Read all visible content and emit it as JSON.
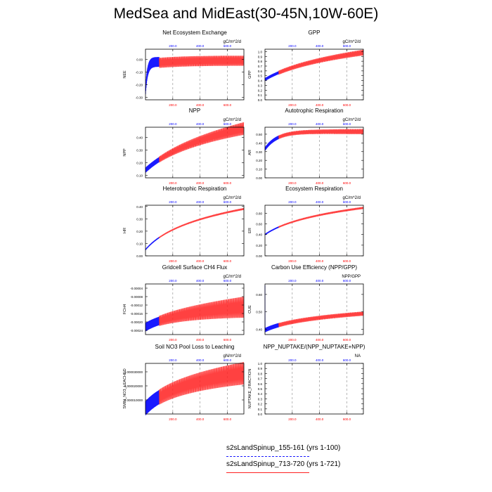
{
  "page": {
    "title": "MedSea and MidEast(30-45N,10W-60E)"
  },
  "legend": {
    "entries": [
      {
        "label": "s2sLandSpinup_155-161 (yrs 1-100)",
        "color": "#1a1aff",
        "style": "dashed"
      },
      {
        "label": "s2sLandSpinup_713-720 (yrs 1-721)",
        "color": "#ff2020",
        "style": "solid"
      }
    ]
  },
  "colors": {
    "case1": "#1a1aff",
    "case2": "#ff2020",
    "grid": "#888888",
    "top_axis_labels": "#0000ff",
    "bottom_axis_labels": "#ff0000"
  },
  "chart_data": [
    {
      "type": "line",
      "title": "Net Ecosystem Exchange",
      "units": "gC/m^2/d",
      "ylabel": "NEE",
      "ylim": [
        -0.32,
        0.08
      ],
      "yticks": [
        -0.3,
        -0.2,
        -0.1,
        0.0
      ],
      "ytick_labels": [
        "-0.30",
        "-0.20",
        "-0.10",
        "0.00"
      ],
      "xlim": [
        0,
        721
      ],
      "xticks": [
        200,
        400,
        600
      ],
      "xtick_labels": [
        "200.0",
        "400.0",
        "600.0"
      ],
      "series": [
        {
          "name": "s2sLandSpinup_155-161",
          "years": [
            1,
            100
          ],
          "start": -0.25,
          "end": -0.02,
          "shape": "decay",
          "k": 15,
          "amp": 0.04,
          "amp_final": 0.03
        },
        {
          "name": "s2sLandSpinup_713-720",
          "years": [
            1,
            721
          ],
          "start": -0.04,
          "end": -0.01,
          "shape": "decay",
          "k": 200,
          "amp": 0.04,
          "amp_final": 0.04
        }
      ]
    },
    {
      "type": "line",
      "title": "GPP",
      "units": "gC/m^2/d",
      "ylabel": "GPP",
      "ylim": [
        0.0,
        1.05
      ],
      "yticks": [
        0.0,
        0.1,
        0.2,
        0.3,
        0.4,
        0.5,
        0.6,
        0.7,
        0.8,
        0.9,
        1.0
      ],
      "ytick_labels": [
        "0.0",
        "0.1",
        "0.2",
        "0.3",
        "0.4",
        "0.5",
        "0.6",
        "0.7",
        "0.8",
        "0.9",
        "1.0"
      ],
      "xlim": [
        0,
        721
      ],
      "xticks": [
        200,
        400,
        600
      ],
      "xtick_labels": [
        "200.0",
        "400.0",
        "600.0"
      ],
      "series": [
        {
          "name": "s2sLandSpinup_155-161",
          "years": [
            1,
            100
          ],
          "start": 0.42,
          "end": 0.98,
          "shape": "log",
          "k": 230,
          "amp": 0.03,
          "amp_final": 0.03
        },
        {
          "name": "s2sLandSpinup_713-720",
          "years": [
            1,
            721
          ],
          "start": 0.42,
          "end": 0.98,
          "shape": "log",
          "k": 230,
          "amp": 0.04,
          "amp_final": 0.06
        }
      ]
    },
    {
      "type": "line",
      "title": "NPP",
      "units": "gC/m^2/d",
      "ylabel": "NPP",
      "ylim": [
        0.08,
        0.48
      ],
      "yticks": [
        0.1,
        0.2,
        0.3,
        0.4
      ],
      "ytick_labels": [
        "0.10",
        "0.20",
        "0.30",
        "0.40"
      ],
      "xlim": [
        0,
        721
      ],
      "xticks": [
        200,
        400,
        600
      ],
      "xtick_labels": [
        "200.0",
        "400.0",
        "600.0"
      ],
      "series": [
        {
          "name": "s2sLandSpinup_155-161",
          "years": [
            1,
            100
          ],
          "start": 0.14,
          "end": 0.47,
          "shape": "log",
          "k": 230,
          "amp": 0.02,
          "amp_final": 0.02
        },
        {
          "name": "s2sLandSpinup_713-720",
          "years": [
            1,
            721
          ],
          "start": 0.14,
          "end": 0.47,
          "shape": "log",
          "k": 230,
          "amp": 0.02,
          "amp_final": 0.05
        }
      ]
    },
    {
      "type": "line",
      "title": "Autotrophic Respiration",
      "units": "gC/m^2/d",
      "ylabel": "AR",
      "ylim": [
        0.0,
        0.58
      ],
      "yticks": [
        0.0,
        0.1,
        0.2,
        0.3,
        0.4,
        0.5
      ],
      "ytick_labels": [
        "0.00",
        "0.10",
        "0.20",
        "0.30",
        "0.40",
        "0.50"
      ],
      "xlim": [
        0,
        721
      ],
      "xticks": [
        200,
        400,
        600
      ],
      "xtick_labels": [
        "200.0",
        "400.0",
        "600.0"
      ],
      "series": [
        {
          "name": "s2sLandSpinup_155-161",
          "years": [
            1,
            100
          ],
          "start": 0.33,
          "end": 0.53,
          "shape": "decay",
          "k": 90,
          "amp": 0.02,
          "amp_final": 0.02
        },
        {
          "name": "s2sLandSpinup_713-720",
          "years": [
            1,
            721
          ],
          "start": 0.33,
          "end": 0.53,
          "shape": "decay",
          "k": 90,
          "amp": 0.02,
          "amp_final": 0.03
        }
      ]
    },
    {
      "type": "line",
      "title": "Heterotrophic Respiration",
      "units": "gC/m^2/d",
      "ylabel": "HR",
      "ylim": [
        0.0,
        0.41
      ],
      "yticks": [
        0.0,
        0.1,
        0.2,
        0.3,
        0.4
      ],
      "ytick_labels": [
        "0.00",
        "0.10",
        "0.20",
        "0.30",
        "0.40"
      ],
      "xlim": [
        0,
        721
      ],
      "xticks": [
        200,
        400,
        600
      ],
      "xtick_labels": [
        "200.0",
        "400.0",
        "600.0"
      ],
      "series": [
        {
          "name": "s2sLandSpinup_155-161",
          "years": [
            1,
            100
          ],
          "start": 0.05,
          "end": 0.38,
          "shape": "log",
          "k": 140,
          "amp": 0.005,
          "amp_final": 0.005
        },
        {
          "name": "s2sLandSpinup_713-720",
          "years": [
            1,
            721
          ],
          "start": 0.05,
          "end": 0.38,
          "shape": "log",
          "k": 140,
          "amp": 0.006,
          "amp_final": 0.008
        }
      ]
    },
    {
      "type": "line",
      "title": "Ecosystem Respiration",
      "units": "gC/m^2/d",
      "ylabel": "ER",
      "ylim": [
        0.0,
        0.95
      ],
      "yticks": [
        0.0,
        0.2,
        0.4,
        0.6,
        0.8
      ],
      "ytick_labels": [
        "0.00",
        "0.20",
        "0.40",
        "0.60",
        "0.80"
      ],
      "xlim": [
        0,
        721
      ],
      "xticks": [
        200,
        400,
        600
      ],
      "xtick_labels": [
        "200.0",
        "400.0",
        "600.0"
      ],
      "series": [
        {
          "name": "s2sLandSpinup_155-161",
          "years": [
            1,
            100
          ],
          "start": 0.4,
          "end": 0.9,
          "shape": "log",
          "k": 170,
          "amp": 0.012,
          "amp_final": 0.012
        },
        {
          "name": "s2sLandSpinup_713-720",
          "years": [
            1,
            721
          ],
          "start": 0.4,
          "end": 0.9,
          "shape": "log",
          "k": 170,
          "amp": 0.015,
          "amp_final": 0.02
        }
      ]
    },
    {
      "type": "line",
      "title": "Gridcell Surface CH4 Flux",
      "units": "gC/m^2/d",
      "ylabel": "FCH4",
      "ylim": [
        -0.00026,
        -2e-05
      ],
      "yticks": [
        -0.00024,
        -0.0002,
        -0.00016,
        -0.00012,
        -8e-05,
        -4e-05
      ],
      "ytick_labels": [
        "-0.00024",
        "-0.00020",
        "-0.00016",
        "-0.00012",
        "-0.00008",
        "-0.00004"
      ],
      "xlim": [
        0,
        721
      ],
      "xticks": [
        200,
        400,
        600
      ],
      "xtick_labels": [
        "200.0",
        "400.0",
        "600.0"
      ],
      "series": [
        {
          "name": "s2sLandSpinup_155-161",
          "years": [
            1,
            100
          ],
          "start": -0.000225,
          "end": -0.00013,
          "shape": "log",
          "k": 120,
          "amp": 2e-05,
          "amp_final": 2e-05
        },
        {
          "name": "s2sLandSpinup_713-720",
          "years": [
            1,
            721
          ],
          "start": -0.000225,
          "end": -0.00013,
          "shape": "log",
          "k": 120,
          "amp": 2e-05,
          "amp_final": 5e-05
        }
      ]
    },
    {
      "type": "line",
      "title": "Carbon Use Efficiency (NPP/GPP)",
      "units": "NPP/GPP",
      "ylabel": "CUE",
      "ylim": [
        0.37,
        0.66
      ],
      "yticks": [
        0.4,
        0.5,
        0.6
      ],
      "ytick_labels": [
        "0.40",
        "0.50",
        "0.60"
      ],
      "xlim": [
        0,
        721
      ],
      "xticks": [
        200,
        400,
        600
      ],
      "xtick_labels": [
        "200.0",
        "400.0",
        "600.0"
      ],
      "series": [
        {
          "name": "s2sLandSpinup_155-161",
          "years": [
            1,
            100
          ],
          "start": 0.395,
          "end": 0.49,
          "shape": "log",
          "k": 130,
          "amp": 0.012,
          "amp_final": 0.012,
          "spike": 0.64
        },
        {
          "name": "s2sLandSpinup_713-720",
          "years": [
            1,
            721
          ],
          "start": 0.395,
          "end": 0.49,
          "shape": "log",
          "k": 130,
          "amp": 0.012,
          "amp_final": 0.012
        }
      ]
    },
    {
      "type": "line",
      "title": "Soil NO3 Pool Loss to Leaching",
      "units": "gN/m^2/d",
      "ylabel": "SMIN_NO3_LEACHED",
      "ylim": [
        0.0,
        3.6e-05
      ],
      "yticks": [
        1e-05,
        2e-05,
        3e-05
      ],
      "ytick_labels": [
        "0.000010000",
        "0.000020000",
        "0.000030000"
      ],
      "xlim": [
        0,
        721
      ],
      "xticks": [
        200,
        400,
        600
      ],
      "xtick_labels": [
        "200.0",
        "400.0",
        "600.0"
      ],
      "series": [
        {
          "name": "s2sLandSpinup_155-161",
          "years": [
            1,
            100
          ],
          "start": 4e-06,
          "end": 2.9e-05,
          "shape": "log",
          "k": 110,
          "amp": 5e-06,
          "amp_final": 5e-06
        },
        {
          "name": "s2sLandSpinup_713-720",
          "years": [
            1,
            721
          ],
          "start": 4e-06,
          "end": 2.9e-05,
          "shape": "log",
          "k": 110,
          "amp": 5e-06,
          "amp_final": 8e-06
        }
      ]
    },
    {
      "type": "line",
      "title": "NPP_NUPTAKE/(NPP_NUPTAKE+NPP)",
      "units": "NA",
      "ylabel": "NUPTAKE_FRACTION",
      "ylim": [
        0.0,
        1.0
      ],
      "yticks": [
        0.0,
        0.1,
        0.2,
        0.3,
        0.4,
        0.5,
        0.6,
        0.7,
        0.8,
        0.9,
        1.0
      ],
      "ytick_labels": [
        "0.0",
        "0.1",
        "0.2",
        "0.3",
        "0.4",
        "0.5",
        "0.6",
        "0.7",
        "0.8",
        "0.9",
        "1.0"
      ],
      "xlim": [
        0,
        721
      ],
      "xticks": [
        200,
        400,
        600
      ],
      "xtick_labels": [
        "200.0",
        "400.0",
        "600.0"
      ],
      "series": []
    }
  ]
}
